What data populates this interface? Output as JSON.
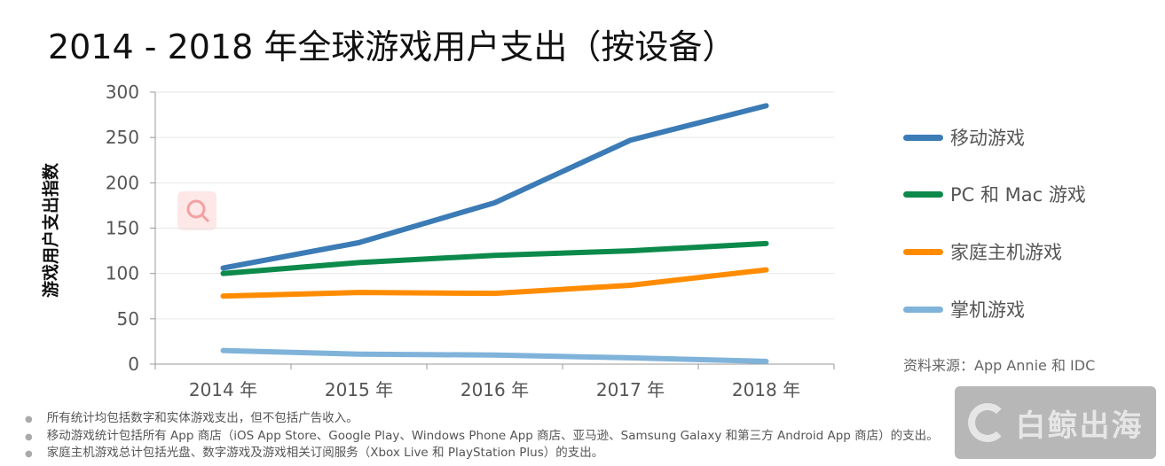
{
  "title": "2014 - 2018 年全球游戏用户支出（按设备）",
  "chart_data": {
    "type": "line",
    "title": "2014 - 2018 年全球游戏用户支出（按设备）",
    "xlabel": "",
    "ylabel": "游戏用户支出指数",
    "categories": [
      "2014 年",
      "2015 年",
      "2016 年",
      "2017 年",
      "2018 年"
    ],
    "ylim": [
      0,
      300
    ],
    "yticks": [
      0,
      50,
      100,
      150,
      200,
      250,
      300
    ],
    "grid": true,
    "legend_position": "right",
    "series": [
      {
        "name": "移动游戏",
        "color": "#3b7bb6",
        "values": [
          106,
          134,
          178,
          247,
          285
        ]
      },
      {
        "name": "PC 和 Mac 游戏",
        "color": "#0c8a4b",
        "values": [
          100,
          112,
          120,
          125,
          133
        ]
      },
      {
        "name": "家庭主机游戏",
        "color": "#ff8c00",
        "values": [
          75,
          79,
          78,
          87,
          104
        ]
      },
      {
        "name": "掌机游戏",
        "color": "#80b3da",
        "values": [
          15,
          11,
          10,
          7,
          3
        ]
      }
    ]
  },
  "source": "资料来源：App Annie 和 IDC",
  "notes": [
    "所有统计均包括数字和实体游戏支出，但不包括广告收入。",
    "移动游戏统计包括所有 App 商店（iOS App Store、Google Play、Windows Phone App 商店、亚马逊、Samsung Galaxy 和第三方 Android App 商店）的支出。",
    "家庭主机游戏总计包括光盘、数字游戏及游戏相关订阅服务（Xbox Live 和 PlayStation Plus）的支出。"
  ],
  "watermark": "白鲸出海"
}
